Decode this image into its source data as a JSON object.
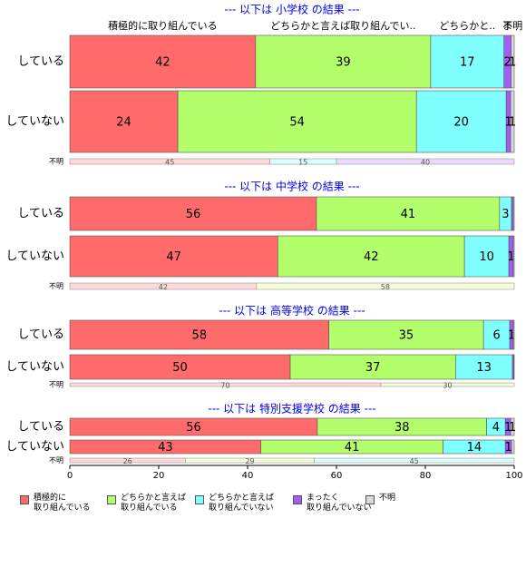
{
  "chart_data": {
    "type": "bar",
    "orientation": "horizontal",
    "stacked": true,
    "xlim": [
      0,
      100
    ],
    "xticks": [
      0,
      20,
      40,
      60,
      80,
      100
    ],
    "series": [
      {
        "name": "積極的に\n取り組んでいる",
        "color": "#ff6b6b",
        "light_color": "#ffd9d9"
      },
      {
        "name": "どちらかと言えば\n取り組んでいる",
        "color": "#b3ff6b",
        "light_color": "#f4ffd9"
      },
      {
        "name": "どちらかと言えば\n取り組んでいない",
        "color": "#80ffff",
        "light_color": "#d9ffff"
      },
      {
        "name": "まったく\n取り組んでいない",
        "color": "#a35cf5",
        "light_color": "#ecd9ff"
      },
      {
        "name": "不明",
        "color": "#d9d9d9",
        "light_color": "#f2f2f2"
      }
    ],
    "panels": [
      {
        "title": "--- 以下は 小学校 の結果 ---",
        "column_labels": [
          "積極的に取り組んでいる",
          "どちらかと言えば取り組んでい..",
          "どちらかと..",
          "ま",
          "不明"
        ],
        "rows": [
          {
            "category": "している",
            "values": [
              41.8,
              39.4,
              16.5,
              1.6,
              0.7
            ],
            "value_labels": [
              "42",
              "39",
              "17",
              "2",
              "1"
            ]
          },
          {
            "category": "していない",
            "values": [
              24.3,
              53.7,
              20.2,
              1.0,
              0.8
            ],
            "value_labels": [
              "24",
              "54",
              "20",
              "1",
              "1"
            ]
          },
          {
            "category": "不明",
            "values": [
              45,
              null,
              15,
              40,
              null
            ]
          }
        ]
      },
      {
        "title": "--- 以下は 中学校 の結果 ---",
        "rows": [
          {
            "category": "している",
            "values": [
              55.5,
              41.2,
              2.7,
              0.4,
              0.2
            ],
            "value_labels": [
              "56",
              "41",
              "3",
              null,
              null
            ]
          },
          {
            "category": "していない",
            "values": [
              46.8,
              42.0,
              10.0,
              1.0,
              0.2
            ],
            "value_labels": [
              "47",
              "42",
              "10",
              "1",
              null
            ]
          },
          {
            "category": "不明",
            "values": [
              42,
              58,
              null,
              null,
              null
            ]
          }
        ]
      },
      {
        "title": "--- 以下は 高等学校 の結果 ---",
        "rows": [
          {
            "category": "している",
            "values": [
              58.3,
              34.8,
              5.9,
              0.8,
              0.2
            ],
            "value_labels": [
              "58",
              "35",
              "6",
              "1",
              null
            ]
          },
          {
            "category": "していない",
            "values": [
              49.6,
              37.2,
              12.8,
              0.3,
              0.1
            ],
            "value_labels": [
              "50",
              "37",
              "13",
              null,
              null
            ]
          },
          {
            "category": "不明",
            "values": [
              70,
              30,
              null,
              null,
              null
            ]
          }
        ]
      },
      {
        "title": "--- 以下は 特別支援学校 の結果 ---",
        "rows": [
          {
            "category": "している",
            "values": [
              55.7,
              38.1,
              4.2,
              1.2,
              0.8
            ],
            "value_labels": [
              "56",
              "38",
              "4",
              "1",
              "1"
            ]
          },
          {
            "category": "していない",
            "values": [
              43.0,
              41.0,
              14.0,
              1.4,
              0.6
            ],
            "value_labels": [
              "43",
              "41",
              "14",
              "1",
              null
            ]
          },
          {
            "category": "不明",
            "values": [
              26,
              29,
              45,
              null,
              null
            ]
          }
        ]
      }
    ]
  }
}
